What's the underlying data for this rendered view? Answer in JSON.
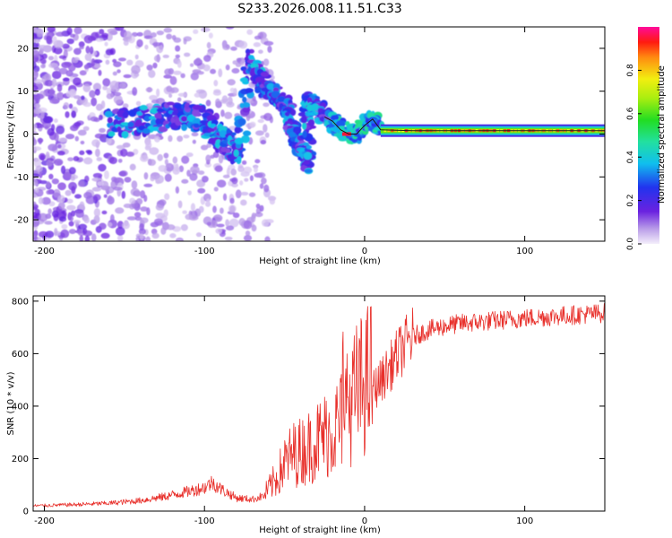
{
  "title": "S233.2026.008.11.51.C33",
  "colors": {
    "snr_line": "#e8302b",
    "trace": "#1a1a1a"
  },
  "chart_data": [
    {
      "type": "heatmap",
      "title": "S233.2026.008.11.51.C33",
      "xlabel": "Height of straight line (km)",
      "ylabel": "Frequency (Hz)",
      "xlim": [
        -207,
        150
      ],
      "ylim": [
        -25,
        25
      ],
      "xticks": [
        -200,
        -100,
        0,
        100
      ],
      "yticks": [
        -20,
        -10,
        0,
        10,
        20
      ],
      "colorbar": {
        "label": "Normalized spectral amplitude",
        "range": [
          0,
          1
        ],
        "ticks": [
          0.0,
          0.2,
          0.4,
          0.6,
          0.8
        ]
      },
      "trace": [
        {
          "x": -160,
          "y": 2.5
        },
        {
          "x": -140,
          "y": 3
        },
        {
          "x": -125,
          "y": 4
        },
        {
          "x": -110,
          "y": 4.5
        },
        {
          "x": -100,
          "y": 3
        },
        {
          "x": -95,
          "y": 1
        },
        {
          "x": -90,
          "y": -1
        },
        {
          "x": -85,
          "y": -2.5
        },
        {
          "x": -78,
          "y": -4
        },
        {
          "x": -72,
          "y": 17
        },
        {
          "x": -66,
          "y": 13
        },
        {
          "x": -58,
          "y": 10
        },
        {
          "x": -52,
          "y": 8
        },
        {
          "x": -48,
          "y": 5
        },
        {
          "x": -45,
          "y": 1
        },
        {
          "x": -42,
          "y": -2
        },
        {
          "x": -38,
          "y": -5
        },
        {
          "x": -35,
          "y": -7
        },
        {
          "x": -36,
          "y": 8
        },
        {
          "x": -30,
          "y": 6
        },
        {
          "x": -25,
          "y": 4
        },
        {
          "x": -20,
          "y": 3
        },
        {
          "x": -15,
          "y": 1
        },
        {
          "x": -10,
          "y": 0
        },
        {
          "x": -5,
          "y": 0
        },
        {
          "x": 0,
          "y": 2
        },
        {
          "x": 5,
          "y": 3.5
        },
        {
          "x": 10,
          "y": 1
        },
        {
          "x": 30,
          "y": 0.8
        },
        {
          "x": 60,
          "y": 0.8
        },
        {
          "x": 100,
          "y": 0.8
        },
        {
          "x": 150,
          "y": 0.8
        }
      ]
    },
    {
      "type": "line",
      "xlabel": "Height of straight line (km)",
      "ylabel": "SNR (10 * v/v)",
      "xlim": [
        -207,
        150
      ],
      "ylim": [
        0,
        820
      ],
      "xticks": [
        -200,
        -100,
        0,
        100
      ],
      "yticks": [
        0,
        200,
        400,
        600,
        800
      ],
      "envelope": [
        {
          "x": -207,
          "y": 20
        },
        {
          "x": -180,
          "y": 25
        },
        {
          "x": -160,
          "y": 30
        },
        {
          "x": -140,
          "y": 40
        },
        {
          "x": -125,
          "y": 55
        },
        {
          "x": -110,
          "y": 75
        },
        {
          "x": -100,
          "y": 90
        },
        {
          "x": -95,
          "y": 110
        },
        {
          "x": -90,
          "y": 85
        },
        {
          "x": -80,
          "y": 50
        },
        {
          "x": -70,
          "y": 45
        },
        {
          "x": -62,
          "y": 60
        },
        {
          "x": -55,
          "y": 110
        },
        {
          "x": -50,
          "y": 160
        },
        {
          "x": -45,
          "y": 190
        },
        {
          "x": -40,
          "y": 200
        },
        {
          "x": -35,
          "y": 215
        },
        {
          "x": -30,
          "y": 235
        },
        {
          "x": -25,
          "y": 255
        },
        {
          "x": -20,
          "y": 270
        },
        {
          "x": -15,
          "y": 300
        },
        {
          "x": -10,
          "y": 350
        },
        {
          "x": -5,
          "y": 400
        },
        {
          "x": 0,
          "y": 430
        },
        {
          "x": 5,
          "y": 460
        },
        {
          "x": 10,
          "y": 495
        },
        {
          "x": 15,
          "y": 540
        },
        {
          "x": 20,
          "y": 590
        },
        {
          "x": 25,
          "y": 630
        },
        {
          "x": 30,
          "y": 665
        },
        {
          "x": 40,
          "y": 690
        },
        {
          "x": 50,
          "y": 705
        },
        {
          "x": 60,
          "y": 715
        },
        {
          "x": 80,
          "y": 725
        },
        {
          "x": 100,
          "y": 735
        },
        {
          "x": 125,
          "y": 745
        },
        {
          "x": 150,
          "y": 755
        }
      ]
    }
  ]
}
